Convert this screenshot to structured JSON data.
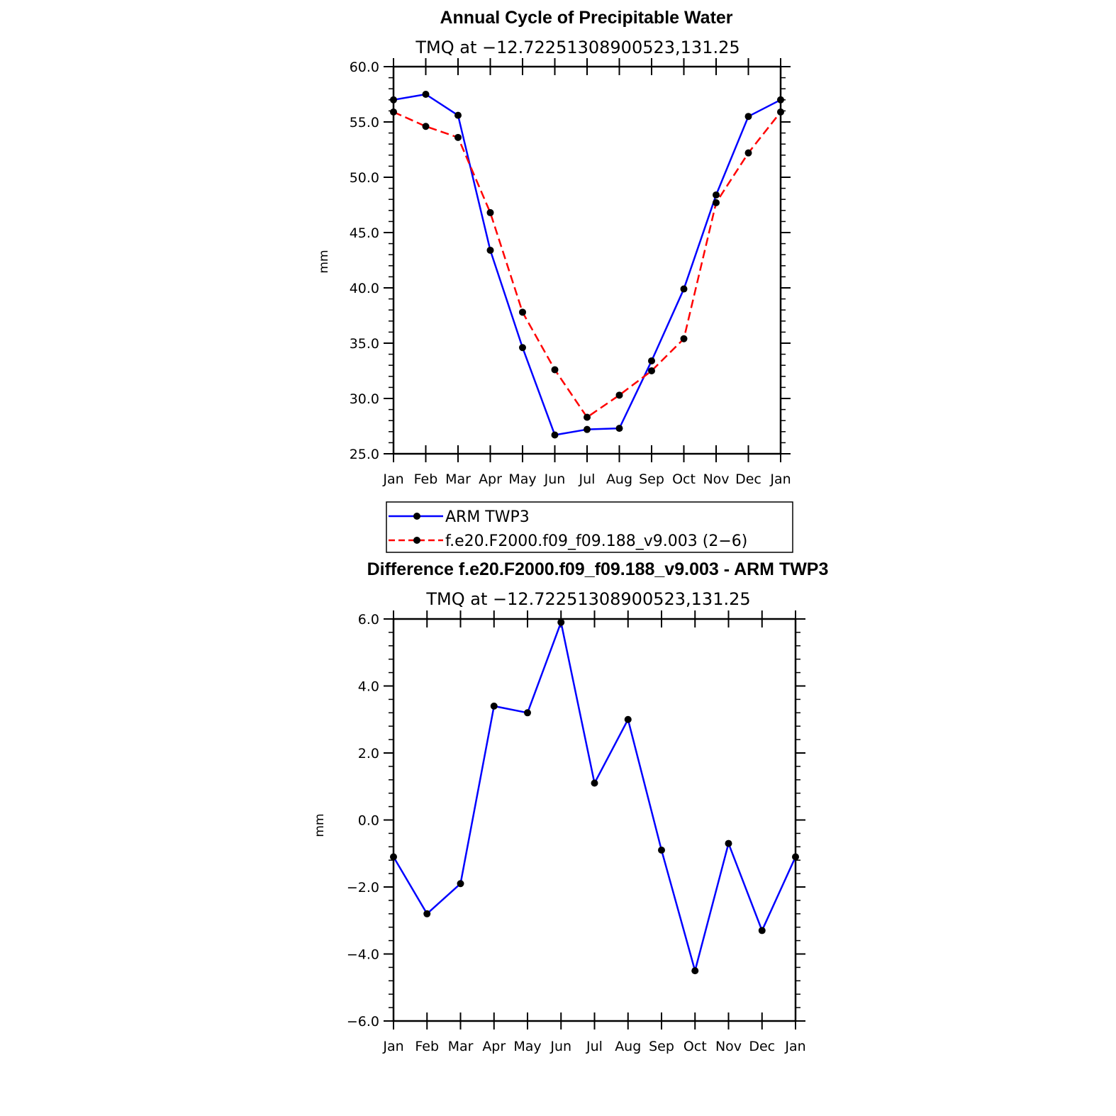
{
  "chart_data": [
    {
      "type": "line",
      "title": "Annual Cycle of Precipitable Water",
      "subtitle": "TMQ at −12.72251308900523,131.25",
      "xlabel": "",
      "ylabel": "mm",
      "categories": [
        "Jan",
        "Feb",
        "Mar",
        "Apr",
        "May",
        "Jun",
        "Jul",
        "Aug",
        "Sep",
        "Oct",
        "Nov",
        "Dec",
        "Jan"
      ],
      "ylim": [
        25,
        60
      ],
      "yticks": [
        25,
        30,
        35,
        40,
        45,
        50,
        55,
        60
      ],
      "ytick_labels": [
        "25.0",
        "30.0",
        "35.0",
        "40.0",
        "45.0",
        "50.0",
        "55.0",
        "60.0"
      ],
      "legend_position": "bottom",
      "series": [
        {
          "name": "ARM TWP3",
          "color": "#0000ff",
          "dash": "solid",
          "values": [
            57.0,
            57.5,
            55.6,
            43.4,
            34.6,
            26.7,
            27.2,
            27.3,
            33.4,
            39.9,
            48.4,
            55.5,
            57.0
          ]
        },
        {
          "name": "f.e20.F2000.f09_f09.188_v9.003 (2−6)",
          "color": "#ff0000",
          "dash": "dashed",
          "values": [
            55.9,
            54.6,
            53.6,
            46.8,
            37.8,
            32.6,
            28.3,
            30.3,
            32.5,
            35.4,
            47.7,
            52.2,
            55.9
          ]
        }
      ]
    },
    {
      "type": "line",
      "title": "Difference f.e20.F2000.f09_f09.188_v9.003 - ARM TWP3",
      "subtitle": "TMQ at −12.72251308900523,131.25",
      "xlabel": "",
      "ylabel": "mm",
      "categories": [
        "Jan",
        "Feb",
        "Mar",
        "Apr",
        "May",
        "Jun",
        "Jul",
        "Aug",
        "Sep",
        "Oct",
        "Nov",
        "Dec",
        "Jan"
      ],
      "ylim": [
        -6,
        6
      ],
      "yticks": [
        -6,
        -4,
        -2,
        0,
        2,
        4,
        6
      ],
      "ytick_labels": [
        "−6.0",
        "−4.0",
        "−2.0",
        "0.0",
        "2.0",
        "4.0",
        "6.0"
      ],
      "series": [
        {
          "name": "Difference",
          "color": "#0000ff",
          "dash": "solid",
          "values": [
            -1.1,
            -2.8,
            -1.9,
            3.4,
            3.2,
            5.9,
            1.1,
            3.0,
            -0.9,
            -4.5,
            -0.7,
            -3.3,
            -1.1
          ]
        }
      ]
    }
  ]
}
